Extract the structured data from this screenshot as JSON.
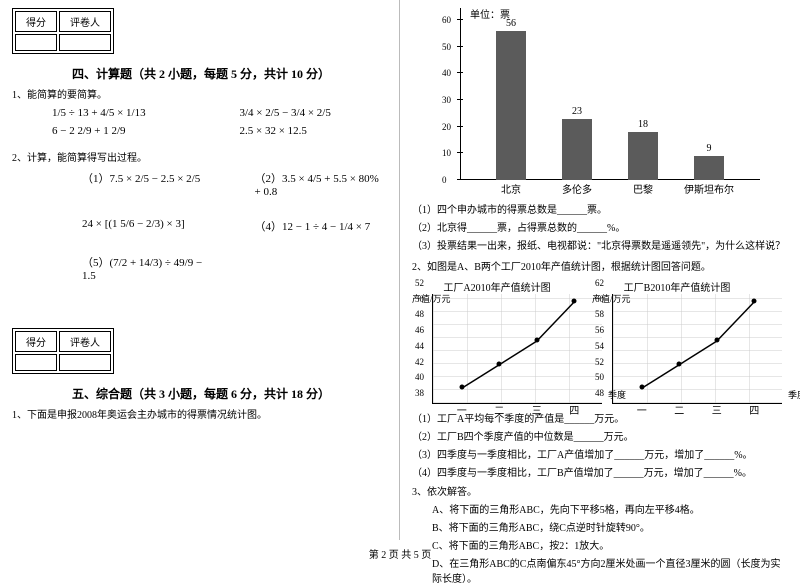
{
  "score_box": {
    "c1": "得分",
    "c2": "评卷人"
  },
  "section4": {
    "title": "四、计算题（共 2 小题，每题 5 分，共计 10 分）",
    "q1_title": "1、能简算的要简算。",
    "formulas1": [
      [
        "1/5 ÷ 13 + 4/5 × 1/13",
        "3/4 × 2/5 − 3/4 × 2/5"
      ],
      [
        "6 − 2 2/9 + 1 2/9",
        "2.5 × 32 × 12.5"
      ]
    ],
    "q2_title": "2、计算，能简算得写出过程。",
    "formulas2": [
      [
        "（1）7.5 × 2/5 − 2.5 × 2/5",
        "（2）3.5 × 4/5 + 5.5 × 80% + 0.8"
      ],
      [
        "",
        ""
      ],
      [
        "24 × [(1 5/6 − 2/3) × 3]",
        "（4）12 − 1 ÷ 4 − 1/4 × 7"
      ],
      [
        "",
        ""
      ],
      [
        "（5）(7/2 + 14/3) ÷ 49/9 − 1.5",
        ""
      ]
    ]
  },
  "section5": {
    "title": "五、综合题（共 3 小题，每题 6 分，共计 18 分）",
    "q1_title": "1、下面是申报2008年奥运会主办城市的得票情况统计图。"
  },
  "chart1": {
    "unit": "单位：票",
    "y_ticks": [
      0,
      10,
      20,
      30,
      40,
      50,
      60
    ],
    "y_max": 60,
    "bars": [
      {
        "label": "北京",
        "value": 56,
        "color": "#5b5b5b"
      },
      {
        "label": "多伦多",
        "value": 23,
        "color": "#5b5b5b"
      },
      {
        "label": "巴黎",
        "value": 18,
        "color": "#5b5b5b"
      },
      {
        "label": "伊斯坦布尔",
        "value": 9,
        "color": "#5b5b5b"
      }
    ]
  },
  "q1_subs": [
    "（1）四个申办城市的得票总数是______票。",
    "（2）北京得______票，占得票总数的______%。",
    "（3）投票结果一出来，报纸、电视都说：\"北京得票数是遥遥领先\"，为什么这样说？"
  ],
  "q2_title": "2、如图是A、B两个工厂2010年产值统计图，根据统计图回答问题。",
  "chart2a": {
    "title": "工厂A2010年产值统计图",
    "ylabel": "产值/万元",
    "xlabel": "季度",
    "x_cats": [
      "一",
      "二",
      "三",
      "四"
    ],
    "y_ticks": [
      38,
      40,
      42,
      44,
      46,
      48,
      50,
      52
    ],
    "values": [
      40,
      43,
      46,
      51
    ],
    "line_color": "#000000"
  },
  "chart2b": {
    "title": "工厂B2010年产值统计图",
    "ylabel": "产值/万元",
    "xlabel": "季度",
    "x_cats": [
      "一",
      "二",
      "三",
      "四"
    ],
    "y_ticks": [
      48,
      50,
      52,
      54,
      56,
      58,
      60,
      62
    ],
    "values": [
      50,
      53,
      56,
      61
    ],
    "line_color": "#000000"
  },
  "q2_subs": [
    "（1）工厂A平均每个季度的产值是______万元。",
    "（2）工厂B四个季度产值的中位数是______万元。",
    "（3）四季度与一季度相比，工厂A产值增加了______万元，增加了______%。",
    "（4）四季度与一季度相比，工厂B产值增加了______万元，增加了______%。"
  ],
  "q3_title": "3、依次解答。",
  "q3_subs": [
    "A、将下面的三角形ABC，先向下平移5格，再向左平移4格。",
    "B、将下面的三角形ABC，绕C点逆时针旋转90°。",
    "C、将下面的三角形ABC，按2：1放大。",
    "D、在三角形ABC的C点南偏东45°方向2厘米处画一个直径3厘米的圆（长度为实际长度）。"
  ],
  "footer": "第 2 页 共 5 页"
}
